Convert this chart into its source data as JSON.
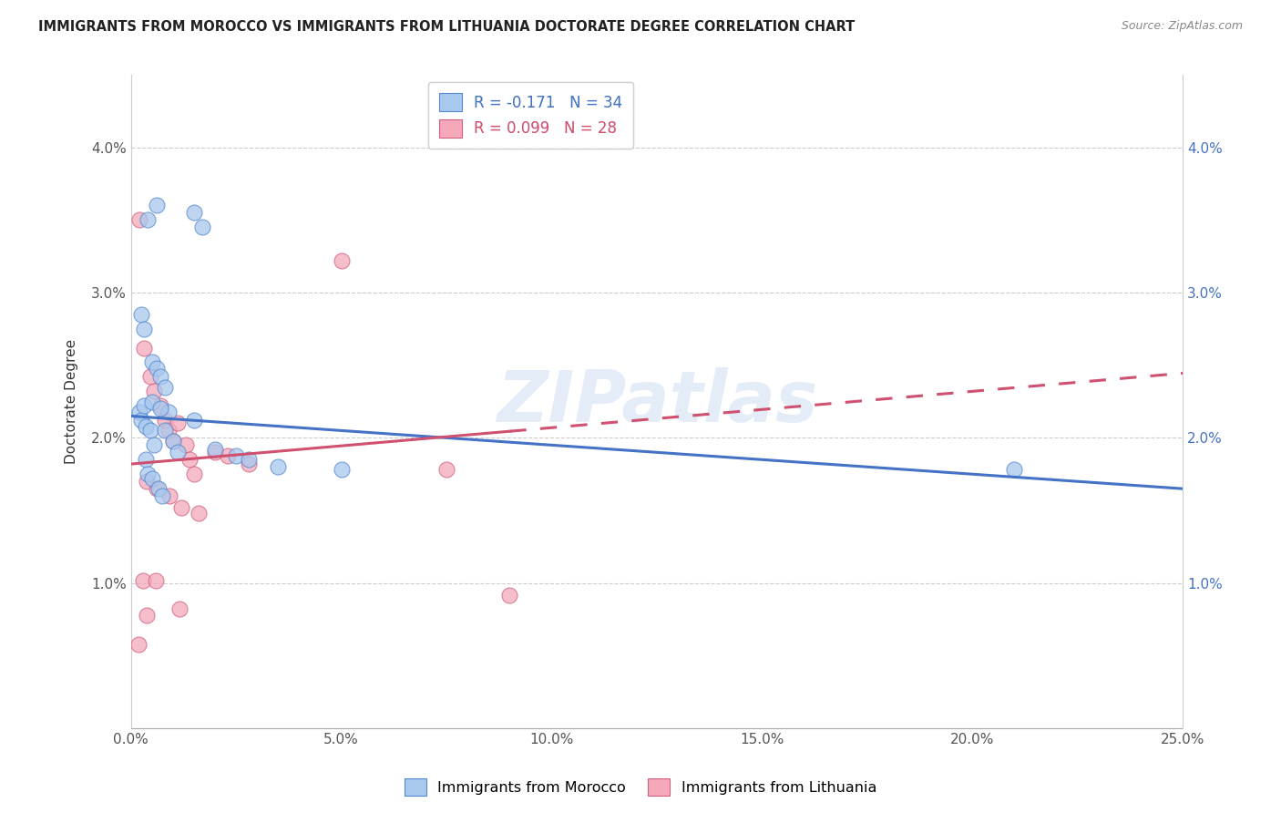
{
  "title": "IMMIGRANTS FROM MOROCCO VS IMMIGRANTS FROM LITHUANIA DOCTORATE DEGREE CORRELATION CHART",
  "source": "Source: ZipAtlas.com",
  "ylabel": "Doctorate Degree",
  "xlim": [
    0.0,
    25.0
  ],
  "ylim": [
    0.0,
    4.5
  ],
  "xtick_vals": [
    0.0,
    5.0,
    10.0,
    15.0,
    20.0,
    25.0
  ],
  "xtick_labels": [
    "0.0%",
    "5.0%",
    "10.0%",
    "15.0%",
    "20.0%",
    "25.0%"
  ],
  "ytick_vals": [
    1.0,
    2.0,
    3.0,
    4.0
  ],
  "ytick_labels": [
    "1.0%",
    "2.0%",
    "3.0%",
    "4.0%"
  ],
  "legend1_r": "R = -0.171",
  "legend1_n": "N = 34",
  "legend2_r": "R = 0.099",
  "legend2_n": "N = 28",
  "color_blue": "#A8C8EE",
  "color_pink": "#F4A8BA",
  "edge_blue": "#5588CC",
  "edge_pink": "#D06080",
  "line_blue": "#4472C4",
  "line_pink": "#D05070",
  "watermark": "ZIPatlas",
  "legend_label_morocco": "Immigrants from Morocco",
  "legend_label_lithuania": "Immigrants from Lithuania",
  "morocco_x": [
    0.4,
    0.6,
    1.5,
    1.7,
    0.25,
    0.3,
    0.5,
    0.6,
    0.7,
    0.8,
    0.2,
    0.25,
    0.35,
    0.45,
    0.55,
    0.8,
    1.0,
    1.5,
    0.35,
    0.4,
    0.5,
    0.65,
    0.75,
    1.1,
    2.0,
    2.5,
    2.8,
    3.5,
    5.0,
    21.0,
    0.3,
    0.5,
    0.9,
    0.7
  ],
  "morocco_y": [
    3.5,
    3.6,
    3.55,
    3.45,
    2.85,
    2.75,
    2.52,
    2.48,
    2.42,
    2.35,
    2.18,
    2.12,
    2.08,
    2.05,
    1.95,
    2.05,
    1.98,
    2.12,
    1.85,
    1.75,
    1.72,
    1.65,
    1.6,
    1.9,
    1.92,
    1.88,
    1.85,
    1.8,
    1.78,
    1.78,
    2.22,
    2.25,
    2.18,
    2.2
  ],
  "lithuania_x": [
    0.2,
    0.3,
    0.45,
    0.55,
    0.7,
    0.8,
    0.9,
    1.0,
    1.1,
    1.3,
    1.4,
    1.5,
    2.0,
    2.3,
    2.8,
    0.38,
    0.62,
    0.92,
    1.2,
    1.6,
    0.28,
    0.58,
    5.0,
    7.5,
    9.0,
    0.18,
    1.15,
    0.38
  ],
  "lithuania_y": [
    3.5,
    2.62,
    2.42,
    2.32,
    2.22,
    2.12,
    2.05,
    1.98,
    2.1,
    1.95,
    1.85,
    1.75,
    1.9,
    1.88,
    1.82,
    1.7,
    1.65,
    1.6,
    1.52,
    1.48,
    1.02,
    1.02,
    3.22,
    1.78,
    0.92,
    0.58,
    0.82,
    0.78
  ]
}
